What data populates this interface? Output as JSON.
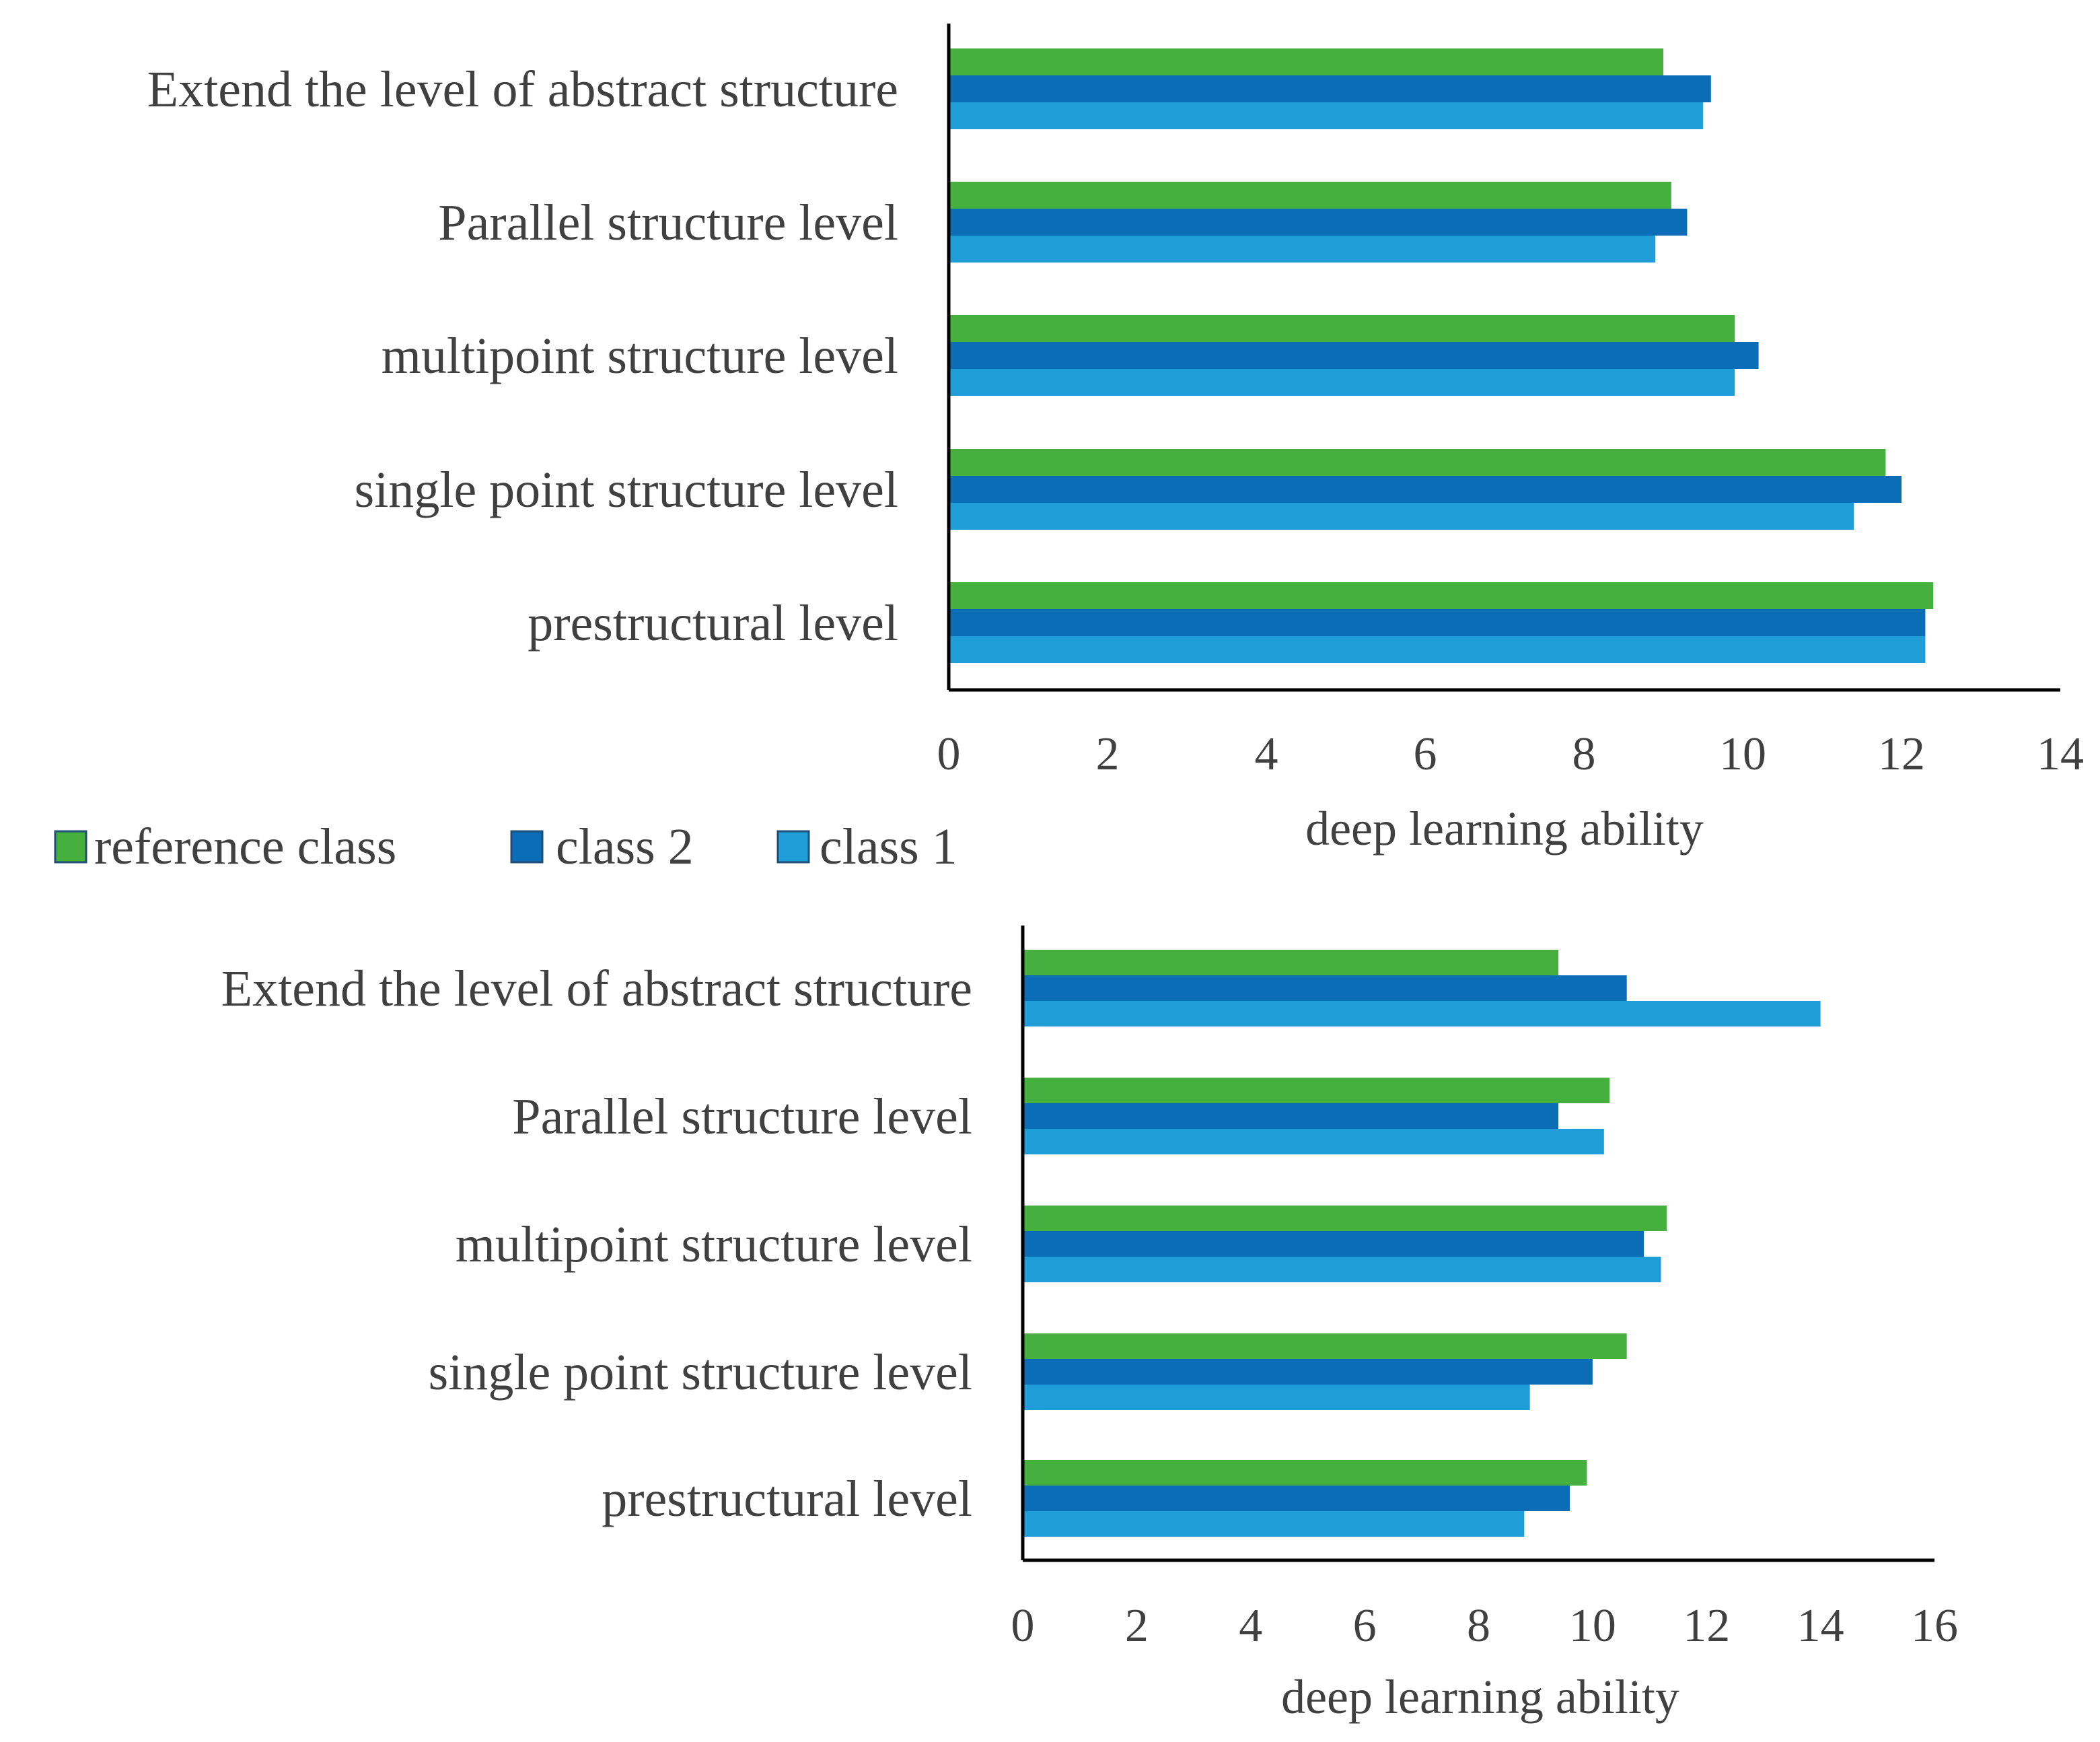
{
  "legend": [
    {
      "name": "reference class",
      "color": "#46b03e"
    },
    {
      "name": "class 2",
      "color": "#0a6db5"
    },
    {
      "name": "class 1",
      "color": "#1e9dd8"
    }
  ],
  "chart_data": [
    {
      "type": "bar",
      "orientation": "horizontal",
      "categories": [
        "Extend the level of abstract structure",
        "Parallel structure level",
        "multipoint structure level",
        "single point structure level",
        "prestructural level"
      ],
      "series": [
        {
          "name": "reference class",
          "values": [
            9.0,
            9.1,
            9.9,
            11.8,
            12.4
          ]
        },
        {
          "name": "class 2",
          "values": [
            9.6,
            9.3,
            10.2,
            12.0,
            12.3
          ]
        },
        {
          "name": "class 1",
          "values": [
            9.5,
            8.9,
            9.9,
            11.4,
            12.3
          ]
        }
      ],
      "xlabel": "deep learning ability",
      "xlim": [
        0,
        14
      ],
      "xticks": [
        "0",
        "2",
        "4",
        "6",
        "8",
        "10",
        "12",
        "14"
      ],
      "grid": false,
      "legend_position": "bottom-left"
    },
    {
      "type": "bar",
      "orientation": "horizontal",
      "categories": [
        "Extend the level of abstract structure",
        "Parallel structure level",
        "multipoint structure level",
        "single point structure level",
        "prestructural level"
      ],
      "series": [
        {
          "name": "reference class",
          "values": [
            9.4,
            10.3,
            11.3,
            10.6,
            9.9
          ]
        },
        {
          "name": "class 2",
          "values": [
            10.6,
            9.4,
            10.9,
            10.0,
            9.6
          ]
        },
        {
          "name": "class 1",
          "values": [
            14.0,
            10.2,
            11.2,
            8.9,
            8.8
          ]
        }
      ],
      "xlabel": "deep learning ability",
      "xlim": [
        0,
        16
      ],
      "xticks": [
        "0",
        "2",
        "4",
        "6",
        "8",
        "10",
        "12",
        "14",
        "16"
      ],
      "grid": false,
      "legend_position": "none"
    }
  ]
}
